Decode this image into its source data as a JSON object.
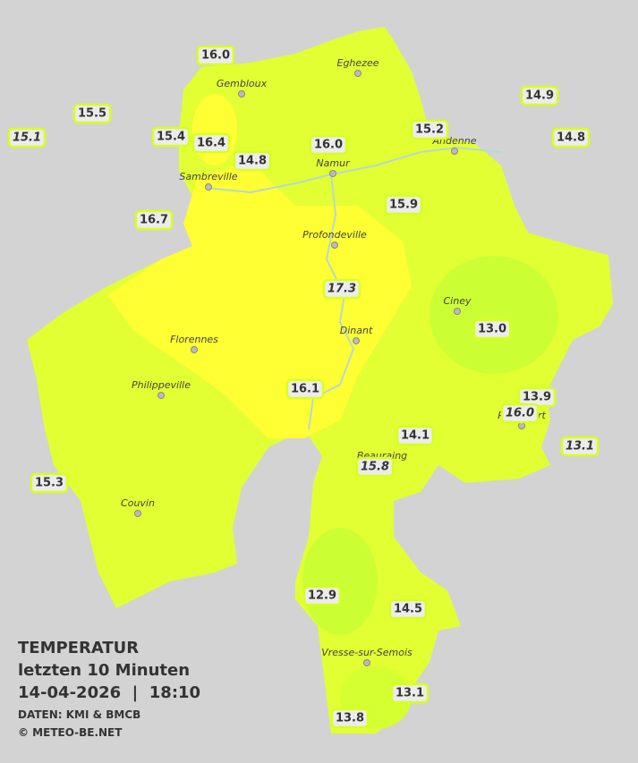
{
  "title": "TEMPERATUR",
  "subtitle": "letzten 10 Minuten",
  "datetime": "14-04-2026  |  18:10",
  "source": "DATEN: KMI & BMCB",
  "copyright": "© METEO-BE.NET",
  "cities": [
    "Eghezee",
    "Gembloux",
    "Andenne",
    "Namur",
    "Sambreville",
    "Profondeville",
    "Ciney",
    "Dinant",
    "Florennes",
    "Philippeville",
    "Rochefort",
    "Beauraing",
    "Couvin",
    "Vresse-sur-Semois"
  ],
  "stations": [
    {
      "label": "16.0",
      "italic": false
    },
    {
      "label": "15.5",
      "italic": false
    },
    {
      "label": "15.1",
      "italic": true
    },
    {
      "label": "15.4",
      "italic": false
    },
    {
      "label": "16.4",
      "italic": false
    },
    {
      "label": "14.8",
      "italic": false
    },
    {
      "label": "16.0",
      "italic": false
    },
    {
      "label": "15.2",
      "italic": false
    },
    {
      "label": "14.9",
      "italic": false
    },
    {
      "label": "14.8",
      "italic": false
    },
    {
      "label": "15.9",
      "italic": false
    },
    {
      "label": "16.7",
      "italic": false
    },
    {
      "label": "17.3",
      "italic": true
    },
    {
      "label": "13.0",
      "italic": false
    },
    {
      "label": "16.1",
      "italic": false
    },
    {
      "label": "13.9",
      "italic": false
    },
    {
      "label": "16.0",
      "italic": true
    },
    {
      "label": "13.1",
      "italic": true
    },
    {
      "label": "14.1",
      "italic": false
    },
    {
      "label": "15.8",
      "italic": true
    },
    {
      "label": "15.3",
      "italic": false
    },
    {
      "label": "12.9",
      "italic": false
    },
    {
      "label": "14.5",
      "italic": false
    },
    {
      "label": "13.1",
      "italic": false
    },
    {
      "label": "13.8",
      "italic": false
    }
  ]
}
